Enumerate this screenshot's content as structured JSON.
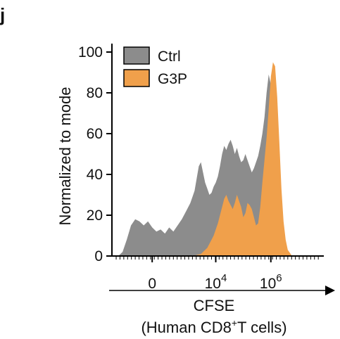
{
  "panel_label": "j",
  "chart_data": {
    "type": "area",
    "title": "",
    "ylabel": "Normalized to mode",
    "xlabel_line1": "CFSE",
    "xlabel_line2_prefix": "(Human CD8",
    "xlabel_line2_sup": "+",
    "xlabel_line2_suffix": "T cells)",
    "x_scale": "biexponential",
    "ylim": [
      0,
      100
    ],
    "y_ticks": [
      0,
      20,
      40,
      60,
      80,
      100
    ],
    "x_ticks": [
      {
        "base": "0",
        "exp": "",
        "pos": 0.19
      },
      {
        "base": "10",
        "exp": "4",
        "pos": 0.49
      },
      {
        "base": "10",
        "exp": "6",
        "pos": 0.75
      }
    ],
    "legend": {
      "placement": "top-left",
      "entries": [
        "Ctrl",
        "G3P"
      ]
    },
    "series": [
      {
        "name": "Ctrl",
        "color": "#8c8c8c",
        "points": [
          [
            0.03,
            0
          ],
          [
            0.05,
            2
          ],
          [
            0.07,
            8
          ],
          [
            0.09,
            15
          ],
          [
            0.11,
            18
          ],
          [
            0.13,
            17
          ],
          [
            0.15,
            15
          ],
          [
            0.17,
            17
          ],
          [
            0.19,
            14
          ],
          [
            0.21,
            12
          ],
          [
            0.23,
            13
          ],
          [
            0.25,
            11
          ],
          [
            0.27,
            14
          ],
          [
            0.29,
            12
          ],
          [
            0.31,
            15
          ],
          [
            0.33,
            18
          ],
          [
            0.35,
            22
          ],
          [
            0.37,
            26
          ],
          [
            0.39,
            32
          ],
          [
            0.4,
            38
          ],
          [
            0.41,
            44
          ],
          [
            0.42,
            46
          ],
          [
            0.43,
            41
          ],
          [
            0.44,
            36
          ],
          [
            0.45,
            33
          ],
          [
            0.46,
            30
          ],
          [
            0.47,
            31
          ],
          [
            0.48,
            34
          ],
          [
            0.49,
            36
          ],
          [
            0.5,
            39
          ],
          [
            0.51,
            44
          ],
          [
            0.52,
            50
          ],
          [
            0.53,
            54
          ],
          [
            0.54,
            52
          ],
          [
            0.55,
            55
          ],
          [
            0.56,
            57
          ],
          [
            0.57,
            54
          ],
          [
            0.58,
            50
          ],
          [
            0.59,
            53
          ],
          [
            0.6,
            49
          ],
          [
            0.61,
            46
          ],
          [
            0.62,
            47
          ],
          [
            0.63,
            50
          ],
          [
            0.64,
            47
          ],
          [
            0.65,
            44
          ],
          [
            0.66,
            41
          ],
          [
            0.67,
            43
          ],
          [
            0.68,
            46
          ],
          [
            0.69,
            49
          ],
          [
            0.7,
            54
          ],
          [
            0.71,
            60
          ],
          [
            0.72,
            68
          ],
          [
            0.73,
            80
          ],
          [
            0.74,
            89
          ],
          [
            0.75,
            84
          ],
          [
            0.76,
            65
          ],
          [
            0.77,
            40
          ],
          [
            0.78,
            18
          ],
          [
            0.79,
            5
          ],
          [
            0.8,
            0
          ]
        ]
      },
      {
        "name": "G3P",
        "color": "#f0a04b",
        "points": [
          [
            0.38,
            0
          ],
          [
            0.42,
            1
          ],
          [
            0.45,
            4
          ],
          [
            0.48,
            10
          ],
          [
            0.5,
            16
          ],
          [
            0.52,
            24
          ],
          [
            0.53,
            28
          ],
          [
            0.54,
            30
          ],
          [
            0.55,
            27
          ],
          [
            0.56,
            25
          ],
          [
            0.57,
            23
          ],
          [
            0.58,
            26
          ],
          [
            0.59,
            30
          ],
          [
            0.6,
            27
          ],
          [
            0.61,
            24
          ],
          [
            0.62,
            19
          ],
          [
            0.63,
            21
          ],
          [
            0.64,
            26
          ],
          [
            0.65,
            25
          ],
          [
            0.66,
            23
          ],
          [
            0.67,
            19
          ],
          [
            0.68,
            15
          ],
          [
            0.69,
            16
          ],
          [
            0.7,
            24
          ],
          [
            0.71,
            36
          ],
          [
            0.72,
            47
          ],
          [
            0.73,
            58
          ],
          [
            0.74,
            72
          ],
          [
            0.75,
            88
          ],
          [
            0.76,
            95
          ],
          [
            0.77,
            93
          ],
          [
            0.78,
            78
          ],
          [
            0.79,
            56
          ],
          [
            0.8,
            33
          ],
          [
            0.81,
            17
          ],
          [
            0.82,
            8
          ],
          [
            0.83,
            3
          ],
          [
            0.85,
            0
          ]
        ]
      }
    ]
  }
}
